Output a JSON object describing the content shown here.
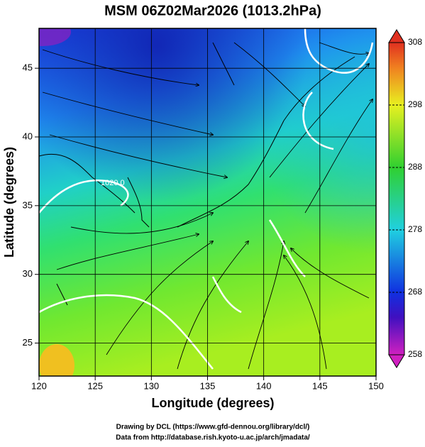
{
  "title": "MSM 06Z02Mar2026 (1013.2hPa)",
  "x_axis": {
    "label": "Longitude (degrees)",
    "lim": [
      120,
      150
    ],
    "ticks": [
      120,
      125,
      130,
      135,
      140,
      145,
      150
    ]
  },
  "y_axis": {
    "label": "Latitude  (degrees)",
    "lim": [
      22.6,
      47.9
    ],
    "ticks": [
      25,
      30,
      35,
      40,
      45
    ]
  },
  "colorbar": {
    "lim": [
      258,
      308
    ],
    "ticks": [
      258,
      268,
      278,
      288,
      298,
      308
    ]
  },
  "contour_labels": [
    "1020.0"
  ],
  "credits": [
    "Drawing by DCL (https://www.gfd-dennou.org/library/dcl/)",
    "Data from http://database.rish.kyoto-u.ac.jp/arch/jmadata/"
  ]
}
